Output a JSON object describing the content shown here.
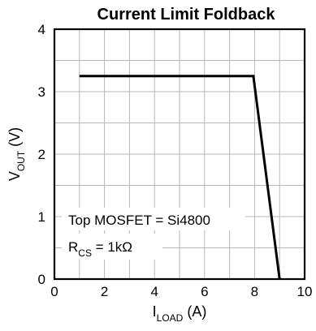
{
  "chart_data": {
    "type": "line",
    "title": "Current Limit Foldback",
    "xlabel": {
      "main": "I",
      "sub": "LOAD",
      "unit": " (A)"
    },
    "ylabel": {
      "main": "V",
      "sub": "OUT",
      "unit": " (V)"
    },
    "xlim": [
      0,
      10
    ],
    "ylim": [
      0,
      4
    ],
    "x_ticks": [
      "0",
      "2",
      "4",
      "6",
      "8",
      "10"
    ],
    "y_ticks": [
      "0",
      "1",
      "2",
      "3",
      "4"
    ],
    "x_tick_values": [
      0,
      2,
      4,
      6,
      8,
      10
    ],
    "y_tick_values": [
      0,
      1,
      2,
      3,
      4
    ],
    "grid": true,
    "series": [
      {
        "x": [
          1,
          7.95,
          9
        ],
        "y": [
          3.25,
          3.25,
          0
        ]
      }
    ],
    "annotations": {
      "line1": "Top MOSFET = Si4800",
      "line2_main": "R",
      "line2_sub": "CS",
      "line2_rest": " = 1kΩ"
    }
  }
}
